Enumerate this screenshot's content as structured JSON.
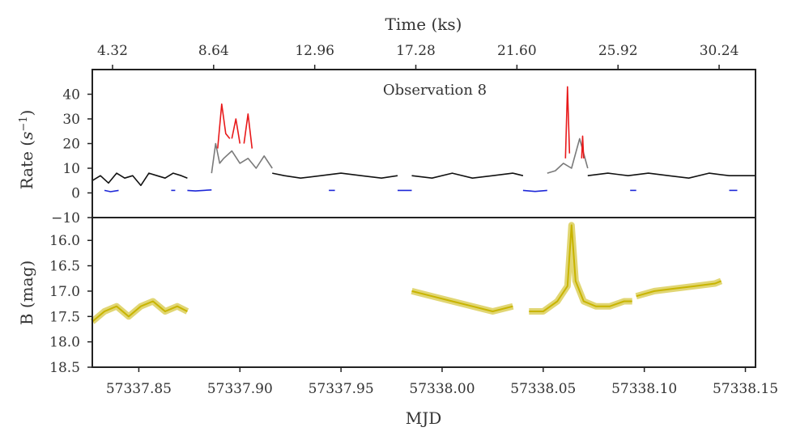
{
  "chart_data": {
    "type": "line",
    "shared_x": {
      "label": "MJD",
      "range": [
        57337.827,
        57338.155
      ],
      "ticks": [
        57337.85,
        57337.9,
        57337.95,
        57338.0,
        57338.05,
        57338.1,
        57338.15
      ],
      "tick_labels": [
        "57337.85",
        "57337.90",
        "57337.95",
        "57338.00",
        "57338.05",
        "57338.10",
        "57338.15"
      ]
    },
    "top_x": {
      "label": "Time (ks)",
      "ticks_mjd": [
        57337.837,
        57337.887,
        57337.937,
        57337.987,
        57338.037,
        57338.087,
        57338.137
      ],
      "tick_labels": [
        "4.32",
        "8.64",
        "12.96",
        "17.28",
        "21.60",
        "25.92",
        "30.24"
      ]
    },
    "panels": [
      {
        "name": "rate",
        "annotation": "Observation 8",
        "ylabel_main": "Rate (",
        "ylabel_sym": "s",
        "ylabel_exp": "−1",
        "ylabel_close": ")",
        "ylim": [
          -10,
          50
        ],
        "yticks": [
          -10,
          0,
          10,
          20,
          30,
          40
        ],
        "ytick_labels": [
          "−10",
          "0",
          "10",
          "20",
          "30",
          "40"
        ],
        "colors": {
          "normal": "#111111",
          "flare_onset": "#7a7a7a",
          "flare_peak": "#e8191a",
          "low": "#1d27d8"
        },
        "segments": [
          {
            "state": "normal",
            "x": [
              57337.827,
              57337.831,
              57337.835,
              57337.839,
              57337.843,
              57337.847,
              57337.851,
              57337.855,
              57337.859,
              57337.863,
              57337.867,
              57337.871,
              57337.874
            ],
            "y": [
              5,
              7,
              4,
              8,
              6,
              7,
              3,
              8,
              7,
              6,
              8,
              7,
              6
            ]
          },
          {
            "state": "low",
            "x": [
              57337.833,
              57337.836,
              57337.84
            ],
            "y": [
              1,
              0.5,
              1
            ]
          },
          {
            "state": "low",
            "x": [
              57337.866,
              57337.868
            ],
            "y": [
              1,
              1
            ]
          },
          {
            "state": "low",
            "x": [
              57337.874,
              57337.878,
              57337.882,
              57337.886
            ],
            "y": [
              1,
              0.8,
              1,
              1.2
            ]
          },
          {
            "state": "flare_onset",
            "x": [
              57337.886,
              57337.888,
              57337.89,
              57337.892,
              57337.896,
              57337.9,
              57337.904,
              57337.908,
              57337.912,
              57337.916
            ],
            "y": [
              8,
              20,
              12,
              14,
              17,
              12,
              14,
              10,
              15,
              10
            ]
          },
          {
            "state": "flare_peak",
            "x": [
              57337.889,
              57337.891,
              57337.893,
              57337.895
            ],
            "y": [
              18,
              36,
              24,
              22
            ]
          },
          {
            "state": "flare_peak",
            "x": [
              57337.896,
              57337.898,
              57337.9
            ],
            "y": [
              22,
              30,
              20
            ]
          },
          {
            "state": "flare_peak",
            "x": [
              57337.902,
              57337.904,
              57337.906
            ],
            "y": [
              20,
              32,
              18
            ]
          },
          {
            "state": "normal",
            "x": [
              57337.916,
              57337.922,
              57337.93,
              57337.94,
              57337.95,
              57337.96,
              57337.97,
              57337.978
            ],
            "y": [
              8,
              7,
              6,
              7,
              8,
              7,
              6,
              7
            ]
          },
          {
            "state": "low",
            "x": [
              57337.944,
              57337.947
            ],
            "y": [
              1,
              1
            ]
          },
          {
            "state": "low",
            "x": [
              57337.978,
              57337.985
            ],
            "y": [
              1,
              1
            ]
          },
          {
            "state": "normal",
            "x": [
              57337.985,
              57337.995,
              57338.005,
              57338.015,
              57338.025,
              57338.035,
              57338.04
            ],
            "y": [
              7,
              6,
              8,
              6,
              7,
              8,
              7
            ]
          },
          {
            "state": "low",
            "x": [
              57338.04,
              57338.046,
              57338.052
            ],
            "y": [
              1,
              0.6,
              1
            ]
          },
          {
            "state": "flare_onset",
            "x": [
              57338.052,
              57338.056,
              57338.06,
              57338.064,
              57338.068,
              57338.072
            ],
            "y": [
              8,
              9,
              12,
              10,
              22,
              10
            ]
          },
          {
            "state": "flare_peak",
            "x": [
              57338.061,
              57338.062,
              57338.063
            ],
            "y": [
              14,
              43,
              16
            ]
          },
          {
            "state": "flare_peak",
            "x": [
              57338.069,
              57338.0695,
              57338.07
            ],
            "y": [
              14,
              23,
              14
            ]
          },
          {
            "state": "normal",
            "x": [
              57338.072,
              57338.082,
              57338.092,
              57338.102,
              57338.112,
              57338.122,
              57338.132,
              57338.142,
              57338.155
            ],
            "y": [
              7,
              8,
              7,
              8,
              7,
              6,
              8,
              7,
              7
            ]
          },
          {
            "state": "low",
            "x": [
              57338.093,
              57338.096
            ],
            "y": [
              1,
              1
            ]
          },
          {
            "state": "low",
            "x": [
              57338.142,
              57338.146
            ],
            "y": [
              1,
              1
            ]
          }
        ]
      },
      {
        "name": "bmag",
        "ylabel": "B (mag)",
        "ylim": [
          18.5,
          15.55
        ],
        "yticks": [
          16.0,
          16.5,
          17.0,
          17.5,
          18.0,
          18.5
        ],
        "ytick_labels": [
          "16.0",
          "16.5",
          "17.0",
          "17.5",
          "18.0",
          "18.5"
        ],
        "color": "#c8b400",
        "segments": [
          {
            "x": [
              57337.827,
              57337.833,
              57337.839,
              57337.845,
              57337.851,
              57337.857,
              57337.863,
              57337.869,
              57337.874
            ],
            "y": [
              17.6,
              17.4,
              17.3,
              17.5,
              17.3,
              17.2,
              17.4,
              17.3,
              17.4
            ]
          },
          {
            "x": [
              57337.985,
              57337.995,
              57338.005,
              57338.015,
              57338.025,
              57338.035
            ],
            "y": [
              17.0,
              17.1,
              17.2,
              17.3,
              17.4,
              17.3
            ]
          },
          {
            "x": [
              57338.043,
              57338.05,
              57338.057,
              57338.062,
              57338.064,
              57338.066,
              57338.07,
              57338.076,
              57338.083,
              57338.09,
              57338.094
            ],
            "y": [
              17.4,
              17.4,
              17.2,
              16.9,
              15.7,
              16.8,
              17.2,
              17.3,
              17.3,
              17.2,
              17.2
            ]
          },
          {
            "x": [
              57338.096,
              57338.105,
              57338.115,
              57338.125,
              57338.135,
              57338.138
            ],
            "y": [
              17.1,
              17.0,
              16.95,
              16.9,
              16.85,
              16.8
            ]
          }
        ]
      }
    ]
  }
}
